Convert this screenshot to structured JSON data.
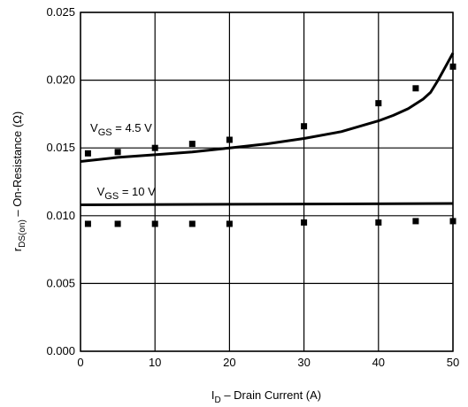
{
  "chart_data": {
    "type": "line",
    "xlabel": {
      "main": "I",
      "sub": "D",
      "rest": " – Drain Current (A)"
    },
    "ylabel": {
      "main": "r",
      "sub": "DS(on)",
      "rest": " – On-Resistance (Ω)"
    },
    "xlim": [
      0,
      50
    ],
    "ylim": [
      0.0,
      0.025
    ],
    "grid": true,
    "x_ticks": [
      0,
      10,
      20,
      30,
      40,
      50
    ],
    "x_tick_labels": [
      "0",
      "10",
      "20",
      "30",
      "40",
      "50"
    ],
    "y_ticks": [
      0.0,
      0.005,
      0.01,
      0.015,
      0.02,
      0.025
    ],
    "y_tick_labels": [
      "0.000",
      "0.005",
      "0.010",
      "0.015",
      "0.020",
      "0.025"
    ],
    "series": [
      {
        "name": {
          "main": "V",
          "sub": "GS",
          "rest": " = 4.5 V"
        },
        "label_at": [
          0.6,
          0.0162
        ],
        "line": {
          "x": [
            0,
            5,
            10,
            15,
            20,
            25,
            30,
            35,
            40,
            42,
            44,
            46,
            47,
            48,
            49,
            50
          ],
          "y": [
            0.014,
            0.0143,
            0.0145,
            0.0147,
            0.015,
            0.0153,
            0.0157,
            0.0162,
            0.017,
            0.0174,
            0.0179,
            0.0186,
            0.0191,
            0.02,
            0.021,
            0.022
          ]
        },
        "points": {
          "x": [
            1,
            5,
            10,
            15,
            20,
            30,
            40,
            45,
            50
          ],
          "y": [
            0.0146,
            0.0147,
            0.015,
            0.0153,
            0.0156,
            0.0166,
            0.0183,
            0.0194,
            0.021
          ]
        }
      },
      {
        "name": {
          "main": "V",
          "sub": "GS",
          "rest": " = 10 V"
        },
        "label_at": [
          1.5,
          0.0115
        ],
        "line": {
          "x": [
            0,
            50
          ],
          "y": [
            0.0108,
            0.0109
          ]
        },
        "points": {
          "x": [
            1,
            5,
            10,
            15,
            20,
            30,
            40,
            45,
            50
          ],
          "y": [
            0.0094,
            0.0094,
            0.0094,
            0.0094,
            0.0094,
            0.0095,
            0.0095,
            0.0096,
            0.0096
          ]
        }
      }
    ]
  }
}
